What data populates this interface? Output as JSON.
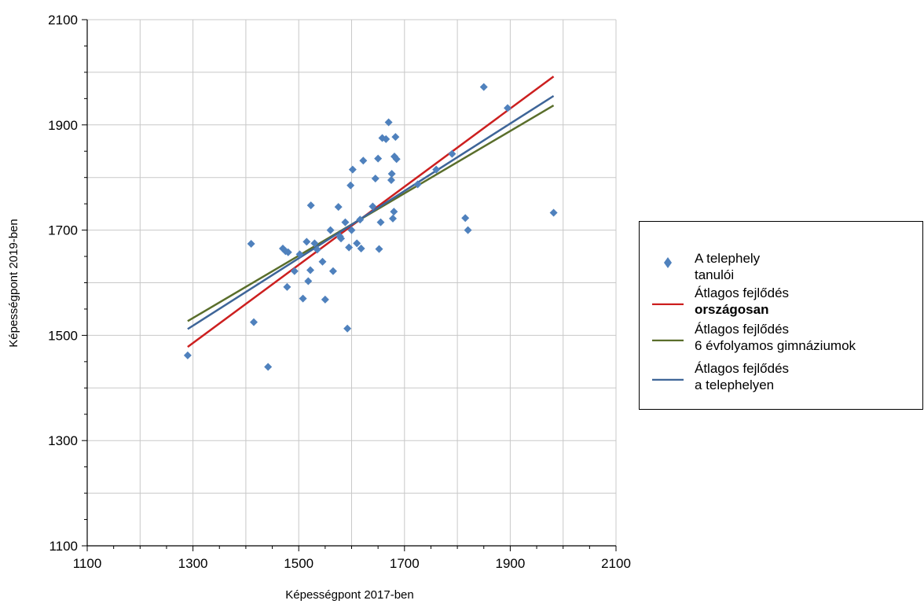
{
  "chart_data": {
    "type": "scatter",
    "xlabel": "Képességpont 2017-ben",
    "ylabel": "Képességpont 2019-ben",
    "xlim": [
      1100,
      2100
    ],
    "ylim": [
      1100,
      2100
    ],
    "x_ticks": [
      "1100",
      "1300",
      "1500",
      "1700",
      "1900",
      "2100"
    ],
    "y_ticks": [
      "1100",
      "1300",
      "1500",
      "1700",
      "1900",
      "2100"
    ],
    "grid": true,
    "legend_position": "right",
    "series": [
      {
        "name": "A telephely tanulói",
        "type": "scatter",
        "marker": "diamond",
        "color": "#4F81BD",
        "points": [
          [
            1290,
            1462
          ],
          [
            1410,
            1674
          ],
          [
            1415,
            1525
          ],
          [
            1442,
            1440
          ],
          [
            1470,
            1665
          ],
          [
            1475,
            1660
          ],
          [
            1478,
            1592
          ],
          [
            1480,
            1658
          ],
          [
            1492,
            1622
          ],
          [
            1502,
            1654
          ],
          [
            1508,
            1570
          ],
          [
            1515,
            1678
          ],
          [
            1518,
            1603
          ],
          [
            1522,
            1624
          ],
          [
            1523,
            1747
          ],
          [
            1530,
            1675
          ],
          [
            1535,
            1663
          ],
          [
            1545,
            1640
          ],
          [
            1550,
            1568
          ],
          [
            1560,
            1700
          ],
          [
            1565,
            1622
          ],
          [
            1575,
            1744
          ],
          [
            1578,
            1688
          ],
          [
            1580,
            1684
          ],
          [
            1588,
            1715
          ],
          [
            1592,
            1513
          ],
          [
            1595,
            1667
          ],
          [
            1598,
            1785
          ],
          [
            1600,
            1700
          ],
          [
            1602,
            1815
          ],
          [
            1610,
            1675
          ],
          [
            1616,
            1720
          ],
          [
            1618,
            1665
          ],
          [
            1622,
            1832
          ],
          [
            1640,
            1745
          ],
          [
            1645,
            1798
          ],
          [
            1650,
            1836
          ],
          [
            1652,
            1664
          ],
          [
            1655,
            1715
          ],
          [
            1658,
            1875
          ],
          [
            1665,
            1873
          ],
          [
            1670,
            1905
          ],
          [
            1675,
            1795
          ],
          [
            1676,
            1807
          ],
          [
            1678,
            1722
          ],
          [
            1680,
            1735
          ],
          [
            1681,
            1840
          ],
          [
            1683,
            1877
          ],
          [
            1685,
            1835
          ],
          [
            1725,
            1787
          ],
          [
            1760,
            1815
          ],
          [
            1790,
            1845
          ],
          [
            1815,
            1723
          ],
          [
            1820,
            1700
          ],
          [
            1850,
            1972
          ],
          [
            1895,
            1932
          ],
          [
            1982,
            1733
          ]
        ]
      },
      {
        "name": "Átlagos fejlődés országosan",
        "type": "line",
        "color": "#CC1F1F",
        "points": [
          [
            1290,
            1478
          ],
          [
            1982,
            1992
          ]
        ]
      },
      {
        "name": "Átlagos fejlődés 6 évfolyamos gimnáziumok",
        "type": "line",
        "color": "#5A6E2B",
        "points": [
          [
            1290,
            1527
          ],
          [
            1982,
            1937
          ]
        ]
      },
      {
        "name": "Átlagos fejlődés a telephelyen",
        "type": "line",
        "color": "#3E6598",
        "points": [
          [
            1290,
            1512
          ],
          [
            1982,
            1955
          ]
        ]
      }
    ]
  },
  "legend": {
    "items": [
      {
        "line1": "A telephely",
        "line2": "tanulói",
        "color": "#4F81BD",
        "kind": "marker"
      },
      {
        "line1": "Átlagos fejlődés",
        "line2": "országosan",
        "color": "#CC1F1F",
        "kind": "line"
      },
      {
        "line1": "Átlagos fejlődés",
        "line2": "6 évfolyamos gimnáziumok",
        "color": "#5A6E2B",
        "kind": "line"
      },
      {
        "line1": "Átlagos fejlődés",
        "line2": "a telephelyen",
        "color": "#3E6598",
        "kind": "line"
      }
    ]
  }
}
